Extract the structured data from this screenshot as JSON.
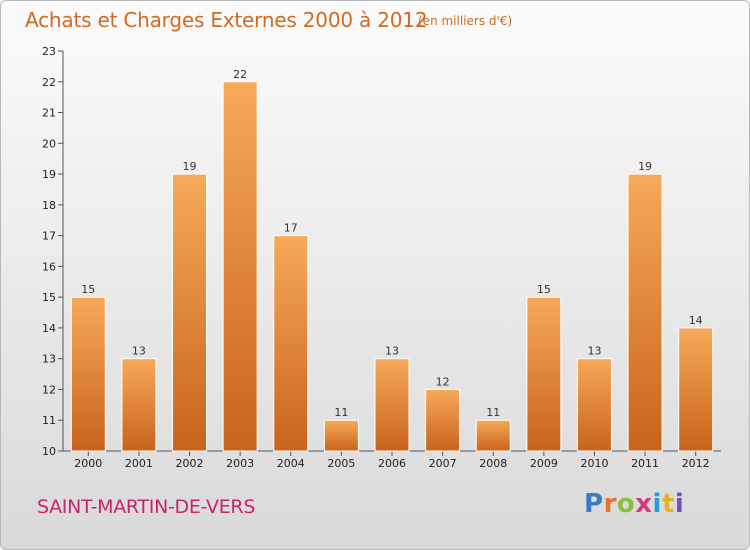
{
  "header": {
    "title": "Achats et Charges Externes 2000 à 2012",
    "subtitle": "(en milliers d'€)"
  },
  "footer": {
    "commune": "SAINT-MARTIN-DE-VERS",
    "logo_text": "Proxiti"
  },
  "colors": {
    "bar_light": "#f7a95a",
    "bar_dark": "#c8631a",
    "title": "#d2691e",
    "commune": "#c8256f"
  },
  "chart_data": {
    "type": "bar",
    "categories": [
      "2000",
      "2001",
      "2002",
      "2003",
      "2004",
      "2005",
      "2006",
      "2007",
      "2008",
      "2009",
      "2010",
      "2011",
      "2012"
    ],
    "values": [
      15,
      13,
      19,
      22,
      17,
      11,
      13,
      12,
      11,
      15,
      13,
      19,
      14
    ],
    "data_labels": [
      "15",
      "13",
      "19",
      "22",
      "17",
      "11",
      "13",
      "12",
      "11",
      "15",
      "13",
      "19",
      "14"
    ],
    "ylim": [
      10,
      23
    ],
    "yticks": [
      "10",
      "11",
      "12",
      "13",
      "14",
      "15",
      "16",
      "17",
      "18",
      "19",
      "20",
      "21",
      "22",
      "23"
    ],
    "grid": false,
    "legend": "none"
  }
}
